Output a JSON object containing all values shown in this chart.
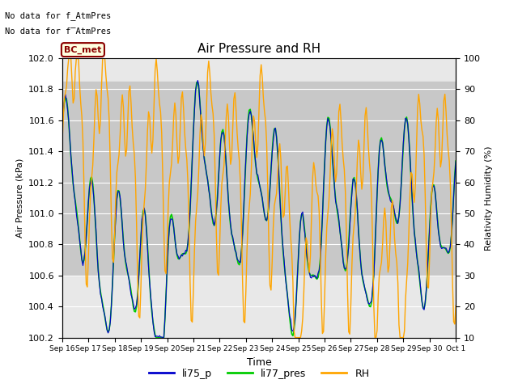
{
  "title": "Air Pressure and RH",
  "xlabel": "Time",
  "ylabel_left": "Air Pressure (kPa)",
  "ylabel_right": "Relativity Humidity (%)",
  "annotation_line1": "No data for f_AtmPres",
  "annotation_line2": "No data for f̅AtmPres",
  "station_label": "BC_met",
  "ylim_left": [
    100.2,
    102.0
  ],
  "ylim_right": [
    10,
    100
  ],
  "yticks_left": [
    100.2,
    100.4,
    100.6,
    100.8,
    101.0,
    101.2,
    101.4,
    101.6,
    101.8,
    102.0
  ],
  "yticks_right": [
    10,
    20,
    30,
    40,
    50,
    60,
    70,
    80,
    90,
    100
  ],
  "color_li75": "#0000cc",
  "color_li77": "#00cc00",
  "color_rh": "#ffa500",
  "background_color": "#ffffff",
  "plot_bg_color": "#e8e8e8",
  "legend_items": [
    "li75_p",
    "li77_pres",
    "RH"
  ],
  "legend_colors": [
    "#0000cc",
    "#00cc00",
    "#ffa500"
  ],
  "shaded_band_min": 100.6,
  "shaded_band_max": 101.85,
  "shaded_band_color": "#c8c8c8",
  "figsize": [
    6.4,
    4.8
  ],
  "dpi": 100
}
